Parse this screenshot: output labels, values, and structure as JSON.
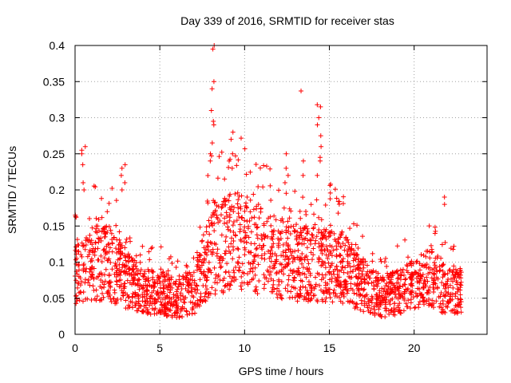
{
  "chart_data": {
    "type": "scatter",
    "title": "Day 339 of 2016, SRMTID for receiver stas",
    "xlabel": "GPS time / hours",
    "ylabel": "SRMTID / TECUs",
    "xlim": [
      0,
      24.3
    ],
    "ylim": [
      0,
      0.4
    ],
    "xticks": [
      0,
      5,
      10,
      15,
      20
    ],
    "yticks": [
      0,
      0.05,
      0.1,
      0.15,
      0.2,
      0.25,
      0.3,
      0.35,
      0.4
    ],
    "grid": true,
    "marker": "+",
    "color": "#ff0000",
    "x_range_data": [
      0.0,
      22.8
    ],
    "profile": [
      [
        0.0,
        0.08
      ],
      [
        0.5,
        0.09
      ],
      [
        1.0,
        0.1
      ],
      [
        2.0,
        0.1
      ],
      [
        3.0,
        0.08
      ],
      [
        4.0,
        0.06
      ],
      [
        5.0,
        0.06
      ],
      [
        6.0,
        0.05
      ],
      [
        7.0,
        0.06
      ],
      [
        8.0,
        0.12
      ],
      [
        9.0,
        0.13
      ],
      [
        10.0,
        0.13
      ],
      [
        11.0,
        0.12
      ],
      [
        12.0,
        0.11
      ],
      [
        13.0,
        0.1
      ],
      [
        14.0,
        0.1
      ],
      [
        15.0,
        0.1
      ],
      [
        16.0,
        0.09
      ],
      [
        17.0,
        0.07
      ],
      [
        18.0,
        0.05
      ],
      [
        19.0,
        0.06
      ],
      [
        20.0,
        0.07
      ],
      [
        21.0,
        0.08
      ],
      [
        22.0,
        0.06
      ],
      [
        22.8,
        0.06
      ]
    ],
    "spike_clusters": [
      {
        "x": 0.5,
        "values": [
          0.255,
          0.26,
          0.25,
          0.235,
          0.21,
          0.2
        ]
      },
      {
        "x": 2.85,
        "values": [
          0.235,
          0.23,
          0.22,
          0.21,
          0.2
        ]
      },
      {
        "x": 8.1,
        "values": [
          0.4,
          0.395,
          0.35,
          0.34,
          0.31,
          0.295,
          0.29,
          0.265,
          0.25,
          0.24
        ]
      },
      {
        "x": 9.2,
        "values": [
          0.28,
          0.27,
          0.25,
          0.24,
          0.23
        ]
      },
      {
        "x": 12.5,
        "values": [
          0.25,
          0.23,
          0.22,
          0.21
        ]
      },
      {
        "x": 13.35,
        "values": [
          0.337,
          0.24,
          0.22
        ]
      },
      {
        "x": 14.4,
        "values": [
          0.318,
          0.315,
          0.3,
          0.29,
          0.275,
          0.26,
          0.245,
          0.24,
          0.22
        ]
      },
      {
        "x": 21.8,
        "values": [
          0.19,
          0.18
        ]
      }
    ]
  }
}
